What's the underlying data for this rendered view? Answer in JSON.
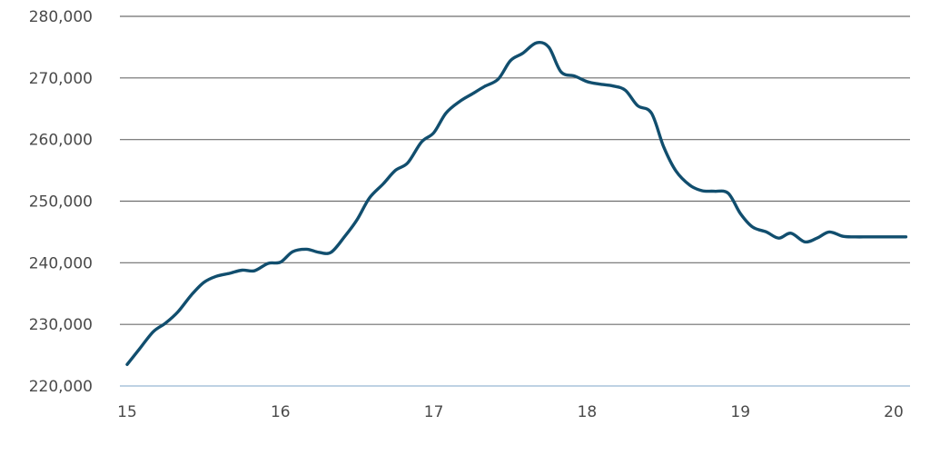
{
  "chart_data": {
    "type": "line",
    "title": "",
    "xlabel": "",
    "ylabel": "",
    "xlim": [
      15,
      20.05
    ],
    "ylim": [
      220000,
      280000
    ],
    "grid": true,
    "x_ticks": [
      15,
      16,
      17,
      18,
      19,
      20
    ],
    "x_tick_labels": [
      "15",
      "16",
      "17",
      "18",
      "19",
      "20"
    ],
    "y_ticks": [
      220000,
      230000,
      240000,
      250000,
      260000,
      270000,
      280000
    ],
    "y_tick_labels": [
      "220,000",
      "230,000",
      "240,000",
      "250,000",
      "260,000",
      "270,000",
      "280,000"
    ],
    "colors": {
      "line": "#114e6e",
      "grid": "#6e6e6e",
      "baseline": "#a9c4dc"
    },
    "series": [
      {
        "x": [
          15.0,
          15.08,
          15.17,
          15.25,
          15.33,
          15.42,
          15.5,
          15.58,
          15.67,
          15.75,
          15.83,
          15.92,
          16.0,
          16.08,
          16.17,
          16.25,
          16.33,
          16.42,
          16.5,
          16.58,
          16.67,
          16.75,
          16.83,
          16.92,
          17.0,
          17.08,
          17.17,
          17.25,
          17.33,
          17.42,
          17.5,
          17.58,
          17.67,
          17.75,
          17.83,
          17.92,
          18.0,
          18.08,
          18.17,
          18.25,
          18.33,
          18.42,
          18.5,
          18.58,
          18.67,
          18.75,
          18.83,
          18.92,
          19.0,
          19.08,
          19.17,
          19.25,
          19.33,
          19.42,
          19.5,
          19.58,
          19.67,
          19.75,
          19.83,
          19.92,
          20.0,
          20.08
        ],
        "values": [
          223500,
          226000,
          228800,
          230200,
          232000,
          234800,
          236800,
          237800,
          238300,
          238800,
          238700,
          239900,
          240100,
          241800,
          242200,
          241700,
          241700,
          244300,
          247000,
          250500,
          252800,
          255000,
          256200,
          259600,
          261100,
          264300,
          266200,
          267400,
          268600,
          269800,
          272800,
          274000,
          275700,
          275000,
          271000,
          270300,
          269400,
          269000,
          268700,
          268000,
          265500,
          264300,
          258800,
          254900,
          252600,
          251700,
          251600,
          251300,
          248000,
          245800,
          245000,
          244000,
          244800,
          243400,
          244000,
          245000,
          244300,
          244200,
          244200,
          244200,
          244200,
          244200
        ]
      }
    ]
  }
}
